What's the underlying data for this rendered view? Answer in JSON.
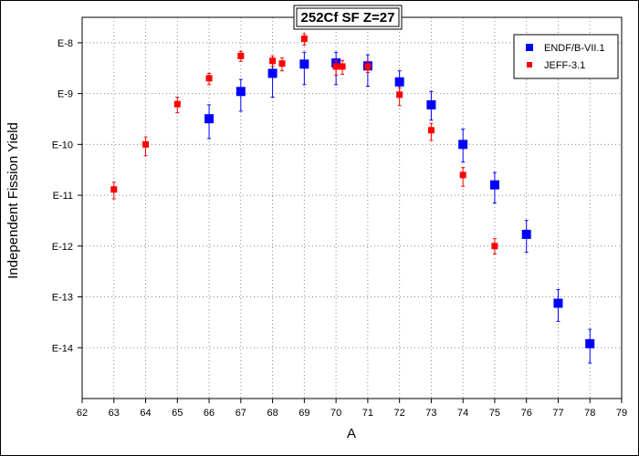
{
  "chart_data": {
    "type": "scatter",
    "title": "252Cf SF Z=27",
    "xlabel": "A",
    "ylabel": "Independent Fission Yield",
    "xlim": [
      62,
      79
    ],
    "ylim_log10": [
      -15,
      -7.5
    ],
    "y_scale": "log",
    "x_ticks": [
      62,
      63,
      64,
      65,
      66,
      67,
      68,
      69,
      70,
      71,
      72,
      73,
      74,
      75,
      76,
      77,
      78,
      79
    ],
    "y_ticks": [
      {
        "label": "E-8",
        "exp": -8
      },
      {
        "label": "E-9",
        "exp": -9
      },
      {
        "label": "E-10",
        "exp": -10
      },
      {
        "label": "E-11",
        "exp": -11
      },
      {
        "label": "E-12",
        "exp": -12
      },
      {
        "label": "E-13",
        "exp": -13
      },
      {
        "label": "E-14",
        "exp": -14
      }
    ],
    "grid": true,
    "legend_position": "top-right",
    "series": [
      {
        "name": "ENDF/B-VII.1",
        "color": "#0000ff",
        "marker": "square-large",
        "points": [
          {
            "x": 66,
            "y": 3.2e-10,
            "ylo": 1.3e-10,
            "yhi": 6e-10
          },
          {
            "x": 67,
            "y": 1.1e-09,
            "ylo": 4.5e-10,
            "yhi": 1.9e-09
          },
          {
            "x": 68,
            "y": 2.5e-09,
            "ylo": 8.5e-10,
            "yhi": 4.5e-09
          },
          {
            "x": 69,
            "y": 3.8e-09,
            "ylo": 1.5e-09,
            "yhi": 6.5e-09
          },
          {
            "x": 70,
            "y": 4e-09,
            "ylo": 1.5e-09,
            "yhi": 6.5e-09
          },
          {
            "x": 71,
            "y": 3.5e-09,
            "ylo": 1.4e-09,
            "yhi": 5.8e-09
          },
          {
            "x": 72,
            "y": 1.7e-09,
            "ylo": 9e-10,
            "yhi": 2.8e-09
          },
          {
            "x": 73,
            "y": 6e-10,
            "ylo": 3e-10,
            "yhi": 1.1e-09
          },
          {
            "x": 74,
            "y": 1e-10,
            "ylo": 4.5e-11,
            "yhi": 2e-10
          },
          {
            "x": 75,
            "y": 1.6e-11,
            "ylo": 7e-12,
            "yhi": 2.8e-11
          },
          {
            "x": 76,
            "y": 1.7e-12,
            "ylo": 7.5e-13,
            "yhi": 3.2e-12
          },
          {
            "x": 77,
            "y": 7.5e-14,
            "ylo": 3.3e-14,
            "yhi": 1.4e-13
          },
          {
            "x": 78,
            "y": 1.2e-14,
            "ylo": 5e-15,
            "yhi": 2.3e-14
          }
        ]
      },
      {
        "name": "JEFF-3.1",
        "color": "#ff0000",
        "marker": "square-small",
        "points": [
          {
            "x": 63,
            "y": 1.3e-11,
            "ylo": 8.5e-12,
            "yhi": 1.8e-11
          },
          {
            "x": 64,
            "y": 1e-10,
            "ylo": 6e-11,
            "yhi": 1.4e-10
          },
          {
            "x": 65,
            "y": 6.2e-10,
            "ylo": 4.2e-10,
            "yhi": 8.5e-10
          },
          {
            "x": 66,
            "y": 2e-09,
            "ylo": 1.5e-09,
            "yhi": 2.5e-09
          },
          {
            "x": 67,
            "y": 5.5e-09,
            "ylo": 4.3e-09,
            "yhi": 6.8e-09
          },
          {
            "x": 68,
            "y": 4.4e-09,
            "ylo": 3.4e-09,
            "yhi": 5.5e-09
          },
          {
            "x": 68.3,
            "y": 3.9e-09,
            "ylo": 2.8e-09,
            "yhi": 5e-09
          },
          {
            "x": 69,
            "y": 1.2e-08,
            "ylo": 9e-09,
            "yhi": 1.5e-08
          },
          {
            "x": 70,
            "y": 3.4e-09,
            "ylo": 2.3e-09,
            "yhi": 4.5e-09
          },
          {
            "x": 70.2,
            "y": 3.4e-09,
            "ylo": 2.4e-09,
            "yhi": 4.5e-09
          },
          {
            "x": 71,
            "y": 3.4e-09,
            "ylo": 2.6e-09,
            "yhi": 4.3e-09
          },
          {
            "x": 72,
            "y": 9.5e-10,
            "ylo": 5.8e-10,
            "yhi": 1.3e-09
          },
          {
            "x": 73,
            "y": 1.9e-10,
            "ylo": 1.2e-10,
            "yhi": 2.6e-10
          },
          {
            "x": 74,
            "y": 2.5e-11,
            "ylo": 1.5e-11,
            "yhi": 3.5e-11
          },
          {
            "x": 75,
            "y": 1e-12,
            "ylo": 7e-13,
            "yhi": 1.4e-12
          }
        ]
      }
    ]
  }
}
